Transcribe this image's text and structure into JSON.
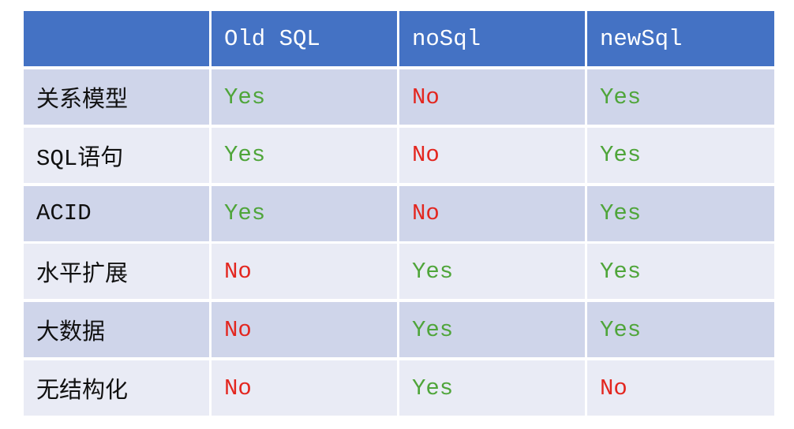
{
  "header": {
    "columns": [
      "Old SQL",
      "noSql",
      "newSql"
    ]
  },
  "rows": [
    {
      "label": "关系模型",
      "cells": [
        "Yes",
        "No",
        "Yes"
      ]
    },
    {
      "label": "SQL语句",
      "cells": [
        "Yes",
        "No",
        "Yes"
      ]
    },
    {
      "label": "ACID",
      "cells": [
        "Yes",
        "No",
        "Yes"
      ]
    },
    {
      "label": "水平扩展",
      "cells": [
        "No",
        "Yes",
        "Yes"
      ]
    },
    {
      "label": "大数据",
      "cells": [
        "No",
        "Yes",
        "Yes"
      ]
    },
    {
      "label": "无结构化",
      "cells": [
        "No",
        "Yes",
        "No"
      ]
    }
  ],
  "colors": {
    "Yes": "#4fa53a",
    "No": "#e3261f"
  }
}
